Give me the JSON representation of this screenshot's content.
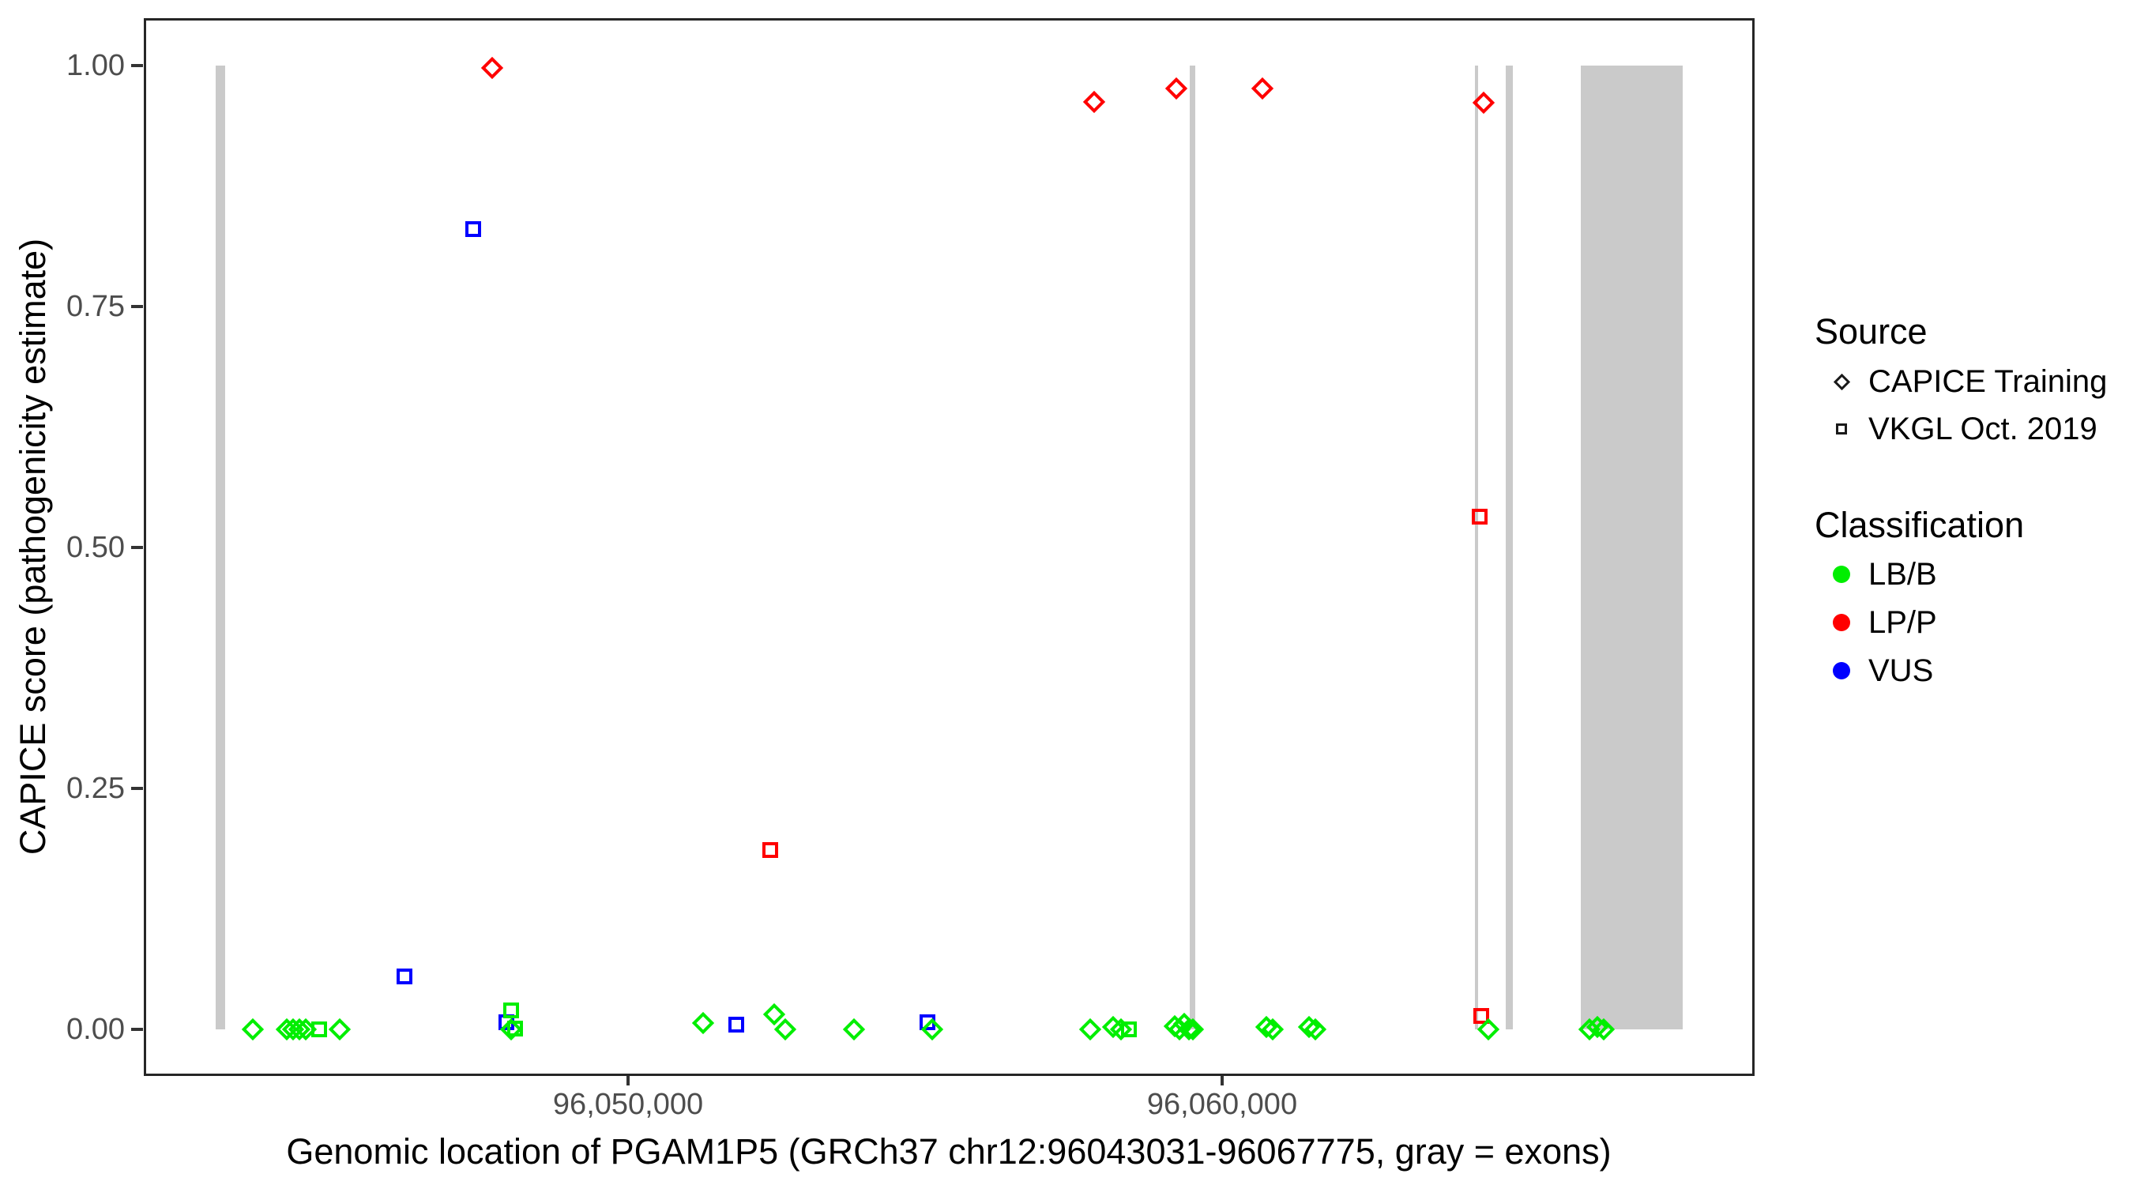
{
  "chart_data": {
    "type": "scatter",
    "title": "",
    "xlabel": "Genomic location of PGAM1P5 (GRCh37 chr12:96043031-96067775, gray = exons)",
    "ylabel": "CAPICE score (pathogenicity estimate)",
    "x_axis": {
      "ticks": [
        96050000,
        96060000
      ],
      "tick_labels": [
        "96,050,000",
        "96,060,000"
      ],
      "range_bp": [
        96041848,
        96068963
      ],
      "grid": false
    },
    "y_axis": {
      "ticks": [
        0.0,
        0.25,
        0.5,
        0.75,
        1.0
      ],
      "tick_labels": [
        "0.00",
        "0.25",
        "0.50",
        "0.75",
        "1.00"
      ],
      "range": [
        -0.048,
        1.049
      ],
      "grid": false
    },
    "exons_bp": [
      {
        "start": 96043058,
        "end": 96043218
      },
      {
        "start": 96059455,
        "end": 96059548
      },
      {
        "start": 96064255,
        "end": 96064308
      },
      {
        "start": 96064774,
        "end": 96064894
      },
      {
        "start": 96066037,
        "end": 96067752
      }
    ],
    "exon_span_score": {
      "min": 0.0,
      "max": 1.0
    },
    "series": [
      {
        "source": "CAPICE Training",
        "classification": "LP/P",
        "marker": "diamond",
        "color": "#ff0000",
        "points": [
          {
            "bp": 96047713,
            "score": 0.997
          },
          {
            "bp": 96057846,
            "score": 0.962
          },
          {
            "bp": 96059229,
            "score": 0.976
          },
          {
            "bp": 96060679,
            "score": 0.976
          },
          {
            "bp": 96064403,
            "score": 0.961
          }
        ]
      },
      {
        "source": "VKGL Oct. 2019",
        "classification": "LP/P",
        "marker": "square",
        "color": "#ff0000",
        "points": [
          {
            "bp": 96052394,
            "score": 0.186
          },
          {
            "bp": 96064336,
            "score": 0.532
          },
          {
            "bp": 96064363,
            "score": 0.014
          }
        ]
      },
      {
        "source": "VKGL Oct. 2019",
        "classification": "VUS",
        "marker": "square",
        "color": "#0000ff",
        "points": [
          {
            "bp": 96046237,
            "score": 0.055
          },
          {
            "bp": 96047394,
            "score": 0.83
          },
          {
            "bp": 96047952,
            "score": 0.008
          },
          {
            "bp": 96051822,
            "score": 0.005
          },
          {
            "bp": 96055040,
            "score": 0.008
          }
        ]
      },
      {
        "source": "VKGL Oct. 2019",
        "classification": "LB/B",
        "marker": "square",
        "color": "#00ee00",
        "points": [
          {
            "bp": 96044800,
            "score": 0.0
          },
          {
            "bp": 96048032,
            "score": 0.02
          },
          {
            "bp": 96048098,
            "score": 0.001
          },
          {
            "bp": 96058431,
            "score": 0.0
          }
        ]
      },
      {
        "source": "CAPICE Training",
        "classification": "LB/B",
        "marker": "diamond",
        "color": "#00ee00",
        "points": [
          {
            "bp": 96043683,
            "score": 0.0
          },
          {
            "bp": 96044255,
            "score": 0.0
          },
          {
            "bp": 96044361,
            "score": 0.0
          },
          {
            "bp": 96044468,
            "score": 0.0
          },
          {
            "bp": 96044574,
            "score": 0.0
          },
          {
            "bp": 96045146,
            "score": 0.0
          },
          {
            "bp": 96048032,
            "score": 0.0
          },
          {
            "bp": 96051264,
            "score": 0.007
          },
          {
            "bp": 96052461,
            "score": 0.016
          },
          {
            "bp": 96052647,
            "score": 0.0
          },
          {
            "bp": 96053804,
            "score": 0.0
          },
          {
            "bp": 96055120,
            "score": 0.0
          },
          {
            "bp": 96057780,
            "score": 0.0
          },
          {
            "bp": 96058165,
            "score": 0.003
          },
          {
            "bp": 96058298,
            "score": 0.0
          },
          {
            "bp": 96059203,
            "score": 0.004
          },
          {
            "bp": 96059282,
            "score": 0.0
          },
          {
            "bp": 96059362,
            "score": 0.006
          },
          {
            "bp": 96059442,
            "score": 0.0
          },
          {
            "bp": 96059508,
            "score": 0.0
          },
          {
            "bp": 96060745,
            "score": 0.003
          },
          {
            "bp": 96060851,
            "score": 0.0
          },
          {
            "bp": 96061463,
            "score": 0.003
          },
          {
            "bp": 96061569,
            "score": 0.0
          },
          {
            "bp": 96064482,
            "score": 0.0
          },
          {
            "bp": 96066185,
            "score": 0.0
          },
          {
            "bp": 96066318,
            "score": 0.003
          },
          {
            "bp": 96066424,
            "score": 0.0
          }
        ]
      }
    ]
  },
  "legend": {
    "source_title": "Source",
    "source_items": [
      {
        "label": "CAPICE Training",
        "marker": "diamond"
      },
      {
        "label": "VKGL Oct. 2019",
        "marker": "square"
      }
    ],
    "classification_title": "Classification",
    "classification_items": [
      {
        "label": "LB/B",
        "color": "#00ee00"
      },
      {
        "label": "LP/P",
        "color": "#ff0000"
      },
      {
        "label": "VUS",
        "color": "#0000ff"
      }
    ]
  }
}
